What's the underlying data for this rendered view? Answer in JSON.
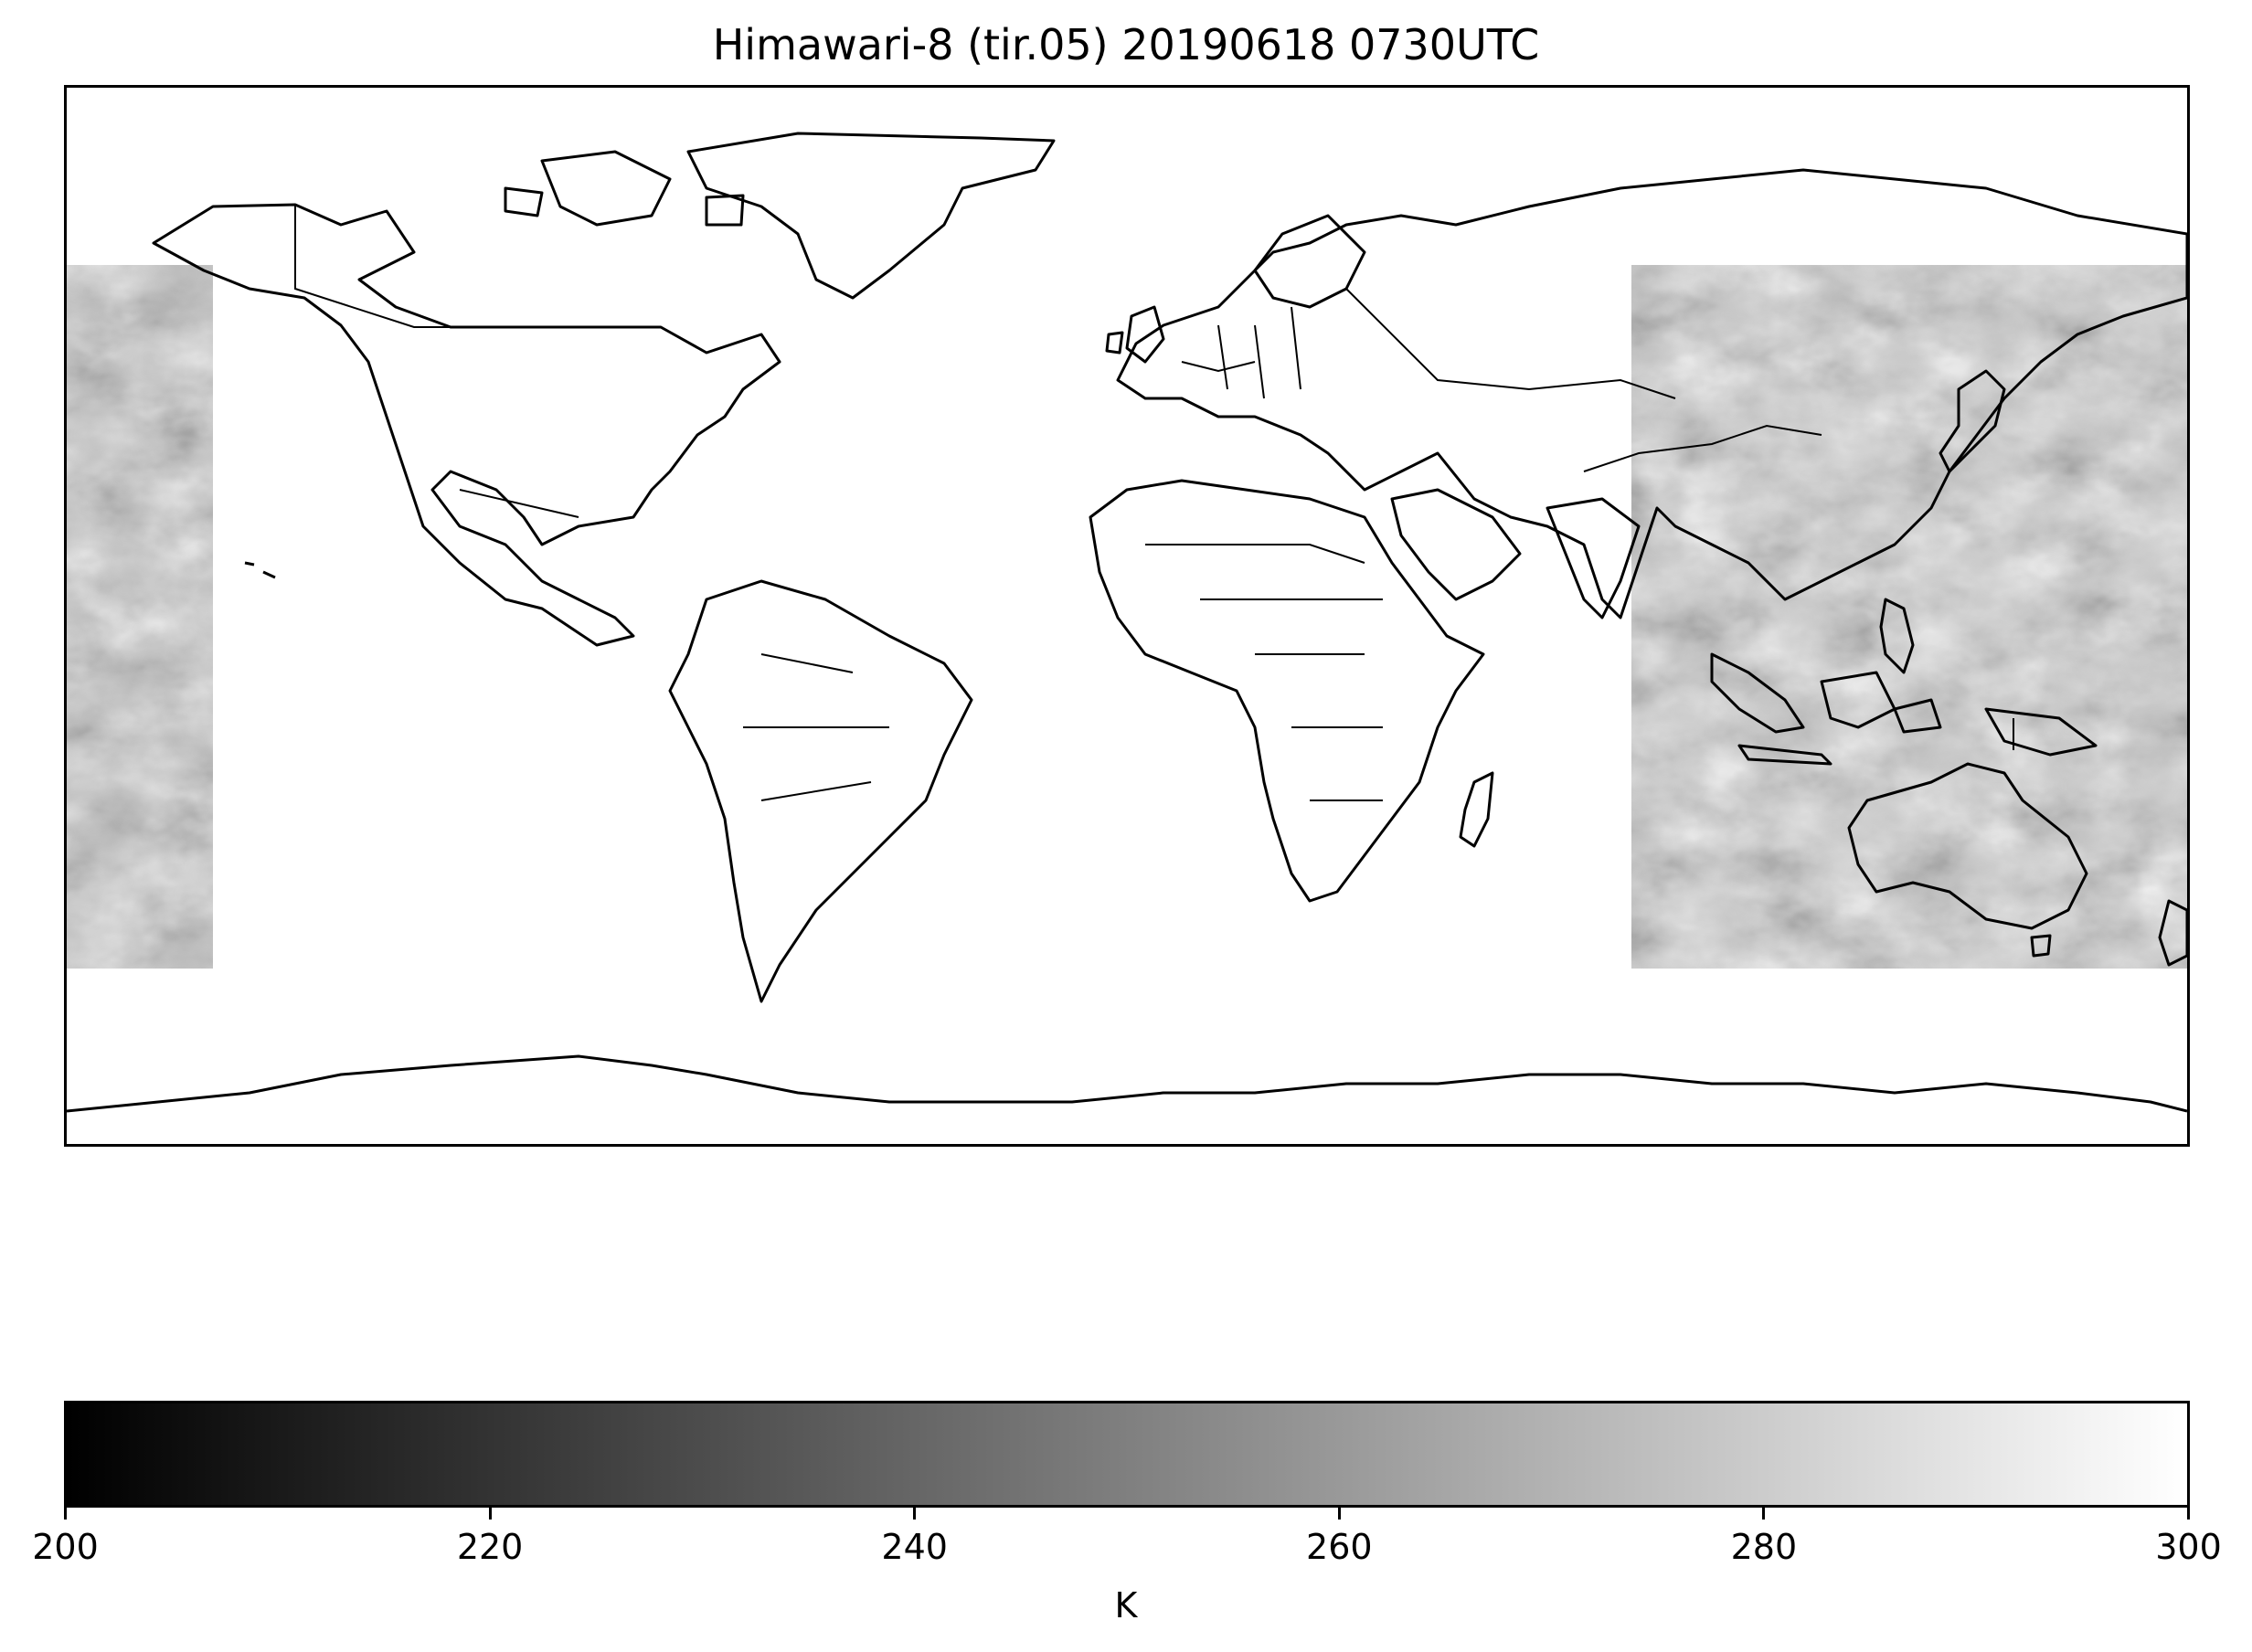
{
  "title": "Himawari-8 (tir.05) 20190618 0730UTC",
  "map": {
    "projection": "PlateCarree",
    "coastlines": true,
    "borders": true,
    "image_extent_lon": {
      "east_part": [
        130.0,
        180.0
      ],
      "west_part": [
        -180.0,
        -166.0
      ]
    },
    "image_extent_lat": [
      -60.0,
      80.0
    ],
    "colormap": "gray"
  },
  "colorbar": {
    "label": "K",
    "vmin": 200,
    "vmax": 300,
    "ticks": [
      "200",
      "220",
      "240",
      "260",
      "280",
      "300"
    ],
    "tick_values": [
      200,
      220,
      240,
      260,
      280,
      300
    ],
    "color_min": "#000000",
    "color_max": "#ffffff"
  }
}
